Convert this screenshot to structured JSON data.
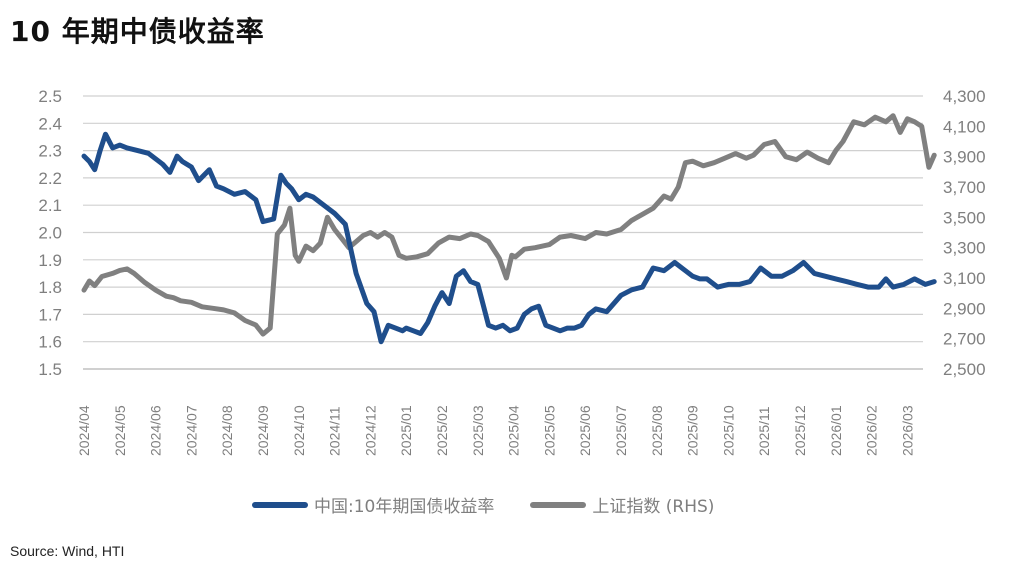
{
  "title": "10 年期中债收益率",
  "source": "Source: Wind, HTI",
  "colors": {
    "bond": "#1f4e8c",
    "index": "#808080",
    "grid": "#d0d0d0",
    "axis_text": "#7f7f7f"
  },
  "legend": [
    {
      "label": "中国:10年期国债收益率",
      "color": "#1f4e8c"
    },
    {
      "label": "上证指数 (RHS)",
      "color": "#808080"
    }
  ],
  "chart_data": {
    "type": "line",
    "title": "10 年期中债收益率",
    "xlabel": "",
    "ylabel": "",
    "y2label": "上证指数 (RHS)",
    "ylim": [
      1.5,
      2.5
    ],
    "y2lim": [
      2500,
      4300
    ],
    "grid": true,
    "legend_position": "bottom",
    "left_ticks": [
      "2.5",
      "2.4",
      "2.3",
      "2.2",
      "2.1",
      "2.0",
      "1.9",
      "1.8",
      "1.7",
      "1.6",
      "1.5"
    ],
    "right_ticks": [
      "4,300",
      "4,100",
      "3,900",
      "3,700",
      "3,500",
      "3,300",
      "3,100",
      "2,900",
      "2,700",
      "2,500"
    ],
    "categories": [
      "2024/04",
      "2024/05",
      "2024/06",
      "2024/07",
      "2024/08",
      "2024/09",
      "2024/10",
      "2024/11",
      "2024/12",
      "2025/01",
      "2025/02",
      "2025/03",
      "2025/04",
      "2025/05",
      "2025/06",
      "2025/07",
      "2025/08",
      "2025/09",
      "2025/10",
      "2025/11",
      "2025/12",
      "2026/01",
      "2026/02",
      "2026/03"
    ],
    "series": [
      {
        "name": "中国:10年期国债收益率",
        "axis": "left",
        "x": [
          0,
          0.15,
          0.3,
          0.45,
          0.6,
          0.8,
          1.0,
          1.2,
          1.5,
          1.8,
          2.0,
          2.2,
          2.4,
          2.6,
          2.75,
          3.0,
          3.2,
          3.5,
          3.7,
          3.9,
          4.2,
          4.5,
          4.8,
          5.0,
          5.3,
          5.5,
          5.65,
          5.8,
          6.0,
          6.2,
          6.4,
          6.7,
          7.0,
          7.3,
          7.6,
          7.9,
          8.1,
          8.3,
          8.5,
          8.7,
          8.9,
          9.0,
          9.2,
          9.4,
          9.6,
          9.8,
          10.0,
          10.2,
          10.4,
          10.6,
          10.8,
          11.0,
          11.1,
          11.3,
          11.5,
          11.7,
          11.9,
          12.1,
          12.3,
          12.5,
          12.7,
          12.9,
          13.1,
          13.3,
          13.5,
          13.7,
          13.9,
          14.1,
          14.3,
          14.6,
          15.0,
          15.3,
          15.6,
          15.9,
          16.2,
          16.5,
          16.8,
          17.0,
          17.2,
          17.4,
          17.7,
          18.0,
          18.3,
          18.6,
          18.9,
          19.2,
          19.5,
          19.8,
          20.1,
          20.4,
          20.7,
          21.0,
          21.3,
          21.6,
          21.9,
          22.2,
          22.4,
          22.6,
          22.9,
          23.2,
          23.5,
          23.75
        ],
        "values": [
          2.28,
          2.26,
          2.23,
          2.3,
          2.36,
          2.31,
          2.32,
          2.31,
          2.3,
          2.29,
          2.27,
          2.25,
          2.22,
          2.28,
          2.26,
          2.24,
          2.19,
          2.23,
          2.17,
          2.16,
          2.14,
          2.15,
          2.12,
          2.04,
          2.05,
          2.21,
          2.18,
          2.16,
          2.12,
          2.14,
          2.13,
          2.1,
          2.07,
          2.03,
          1.85,
          1.74,
          1.71,
          1.6,
          1.66,
          1.65,
          1.64,
          1.65,
          1.64,
          1.63,
          1.67,
          1.73,
          1.78,
          1.74,
          1.84,
          1.86,
          1.82,
          1.81,
          1.76,
          1.66,
          1.65,
          1.66,
          1.64,
          1.65,
          1.7,
          1.72,
          1.73,
          1.66,
          1.65,
          1.64,
          1.65,
          1.65,
          1.66,
          1.7,
          1.72,
          1.71,
          1.77,
          1.79,
          1.8,
          1.87,
          1.86,
          1.89,
          1.86,
          1.84,
          1.83,
          1.83,
          1.8,
          1.81,
          1.81,
          1.82,
          1.87,
          1.84,
          1.84,
          1.86,
          1.89,
          1.85,
          1.84,
          1.83,
          1.82,
          1.81,
          1.8,
          1.8,
          1.83,
          1.8,
          1.81,
          1.83,
          1.81,
          1.82
        ]
      },
      {
        "name": "上证指数 (RHS)",
        "axis": "right",
        "x": [
          0,
          0.15,
          0.3,
          0.5,
          0.8,
          1.0,
          1.2,
          1.4,
          1.7,
          2.0,
          2.3,
          2.5,
          2.7,
          3.0,
          3.3,
          3.6,
          3.9,
          4.2,
          4.5,
          4.8,
          5.0,
          5.2,
          5.4,
          5.6,
          5.75,
          5.9,
          6.0,
          6.2,
          6.4,
          6.6,
          6.8,
          7.0,
          7.2,
          7.4,
          7.6,
          7.8,
          8.0,
          8.2,
          8.4,
          8.6,
          8.8,
          9.0,
          9.3,
          9.6,
          9.9,
          10.2,
          10.5,
          10.8,
          11.0,
          11.3,
          11.6,
          11.8,
          11.95,
          12.05,
          12.3,
          12.6,
          13.0,
          13.3,
          13.6,
          14.0,
          14.3,
          14.6,
          15.0,
          15.3,
          15.6,
          15.9,
          16.2,
          16.4,
          16.6,
          16.8,
          17.0,
          17.3,
          17.6,
          17.9,
          18.2,
          18.5,
          18.7,
          19.0,
          19.3,
          19.6,
          19.9,
          20.2,
          20.5,
          20.8,
          21.0,
          21.2,
          21.5,
          21.8,
          22.1,
          22.4,
          22.6,
          22.8,
          23.0,
          23.2,
          23.4,
          23.6,
          23.75
        ],
        "values": [
          3020,
          3080,
          3050,
          3110,
          3130,
          3150,
          3160,
          3130,
          3070,
          3020,
          2980,
          2970,
          2950,
          2940,
          2910,
          2900,
          2890,
          2870,
          2820,
          2790,
          2730,
          2770,
          3390,
          3450,
          3560,
          3250,
          3210,
          3310,
          3280,
          3330,
          3500,
          3420,
          3360,
          3300,
          3340,
          3380,
          3400,
          3370,
          3400,
          3370,
          3250,
          3230,
          3240,
          3260,
          3330,
          3370,
          3360,
          3390,
          3380,
          3340,
          3230,
          3100,
          3250,
          3240,
          3290,
          3300,
          3320,
          3370,
          3380,
          3360,
          3400,
          3390,
          3420,
          3480,
          3520,
          3560,
          3640,
          3620,
          3700,
          3860,
          3870,
          3840,
          3860,
          3890,
          3920,
          3890,
          3910,
          3980,
          4000,
          3900,
          3880,
          3930,
          3890,
          3860,
          3940,
          4000,
          4130,
          4110,
          4160,
          4130,
          4170,
          4060,
          4150,
          4130,
          4100,
          3830,
          3910
        ]
      }
    ]
  }
}
